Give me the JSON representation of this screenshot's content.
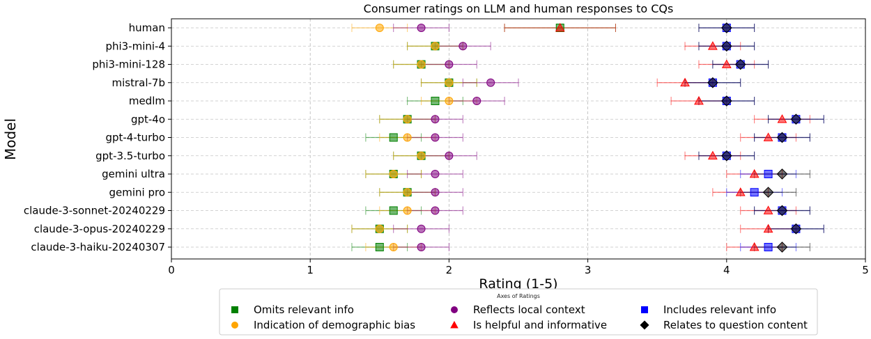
{
  "chart_data": {
    "type": "scatter",
    "title": "Consumer ratings on LLM and human responses to CQs",
    "xlabel": "Rating (1-5)",
    "ylabel": "Model",
    "xlim": [
      0,
      5
    ],
    "xticks": [
      0,
      1,
      2,
      3,
      4,
      5
    ],
    "grid": true,
    "legend": {
      "title": "Axes of Ratings",
      "placement": "bottom-center",
      "entries": [
        {
          "label": "Omits relevant info",
          "series": "omits"
        },
        {
          "label": "Reflects local context",
          "series": "local"
        },
        {
          "label": "Includes relevant info",
          "series": "includes"
        },
        {
          "label": "Indication of demographic bias",
          "series": "bias"
        },
        {
          "label": "Is helpful and informative",
          "series": "helpful"
        },
        {
          "label": "Relates to question content",
          "series": "relates"
        }
      ]
    },
    "categories": [
      "human",
      "phi3-mini-4",
      "phi3-mini-128",
      "mistral-7b",
      "medlm",
      "gpt-4o",
      "gpt-4-turbo",
      "gpt-3.5-turbo",
      "gemini ultra",
      "gemini pro",
      "claude-3-sonnet-20240229",
      "claude-3-opus-20240229",
      "claude-3-haiku-20240307"
    ],
    "series": [
      {
        "key": "omits",
        "name": "Omits relevant info",
        "color": "#008000",
        "marker": "square",
        "values": [
          2.8,
          1.9,
          1.8,
          2.0,
          1.9,
          1.7,
          1.6,
          1.8,
          1.6,
          1.7,
          1.6,
          1.5,
          1.5
        ],
        "errors": [
          0.4,
          0.2,
          0.2,
          0.2,
          0.2,
          0.2,
          0.2,
          0.2,
          0.2,
          0.2,
          0.2,
          0.2,
          0.2
        ]
      },
      {
        "key": "bias",
        "name": "Indication of demographic bias",
        "color": "#ffa500",
        "marker": "circle",
        "values": [
          1.5,
          1.9,
          1.8,
          2.0,
          2.0,
          1.7,
          1.7,
          1.8,
          1.6,
          1.7,
          1.7,
          1.5,
          1.6
        ],
        "errors": [
          0.2,
          0.2,
          0.2,
          0.2,
          0.2,
          0.2,
          0.2,
          0.2,
          0.2,
          0.2,
          0.2,
          0.2,
          0.2
        ]
      },
      {
        "key": "local",
        "name": "Reflects local context",
        "color": "#800080",
        "marker": "circle",
        "values": [
          1.8,
          2.1,
          2.0,
          2.3,
          2.2,
          1.9,
          1.9,
          2.0,
          1.9,
          1.9,
          1.9,
          1.8,
          1.8
        ],
        "errors": [
          0.2,
          0.2,
          0.2,
          0.2,
          0.2,
          0.2,
          0.2,
          0.2,
          0.2,
          0.2,
          0.2,
          0.2,
          0.2
        ]
      },
      {
        "key": "helpful",
        "name": "Is helpful and informative",
        "color": "#ff0000",
        "marker": "triangle",
        "values": [
          2.8,
          3.9,
          4.0,
          3.7,
          3.8,
          4.4,
          4.3,
          3.9,
          4.2,
          4.1,
          4.3,
          4.3,
          4.2
        ],
        "errors": [
          0.4,
          0.2,
          0.2,
          0.2,
          0.2,
          0.2,
          0.2,
          0.2,
          0.2,
          0.2,
          0.2,
          0.2,
          0.2
        ]
      },
      {
        "key": "includes",
        "name": "Includes relevant info",
        "color": "#0000ff",
        "marker": "square",
        "values": [
          4.0,
          4.0,
          4.1,
          3.9,
          4.0,
          4.5,
          4.4,
          4.0,
          4.3,
          4.2,
          4.4,
          4.5,
          4.3
        ],
        "errors": [
          0.2,
          0.2,
          0.2,
          0.2,
          0.2,
          0.2,
          0.2,
          0.2,
          0.2,
          0.2,
          0.2,
          0.2,
          0.2
        ]
      },
      {
        "key": "relates",
        "name": "Relates to question content",
        "color": "#000000",
        "marker": "diamond",
        "values": [
          4.0,
          4.0,
          4.1,
          3.9,
          4.0,
          4.5,
          4.4,
          4.0,
          4.4,
          4.3,
          4.4,
          4.5,
          4.4
        ],
        "errors": [
          0.2,
          0.2,
          0.2,
          0.2,
          0.2,
          0.2,
          0.2,
          0.2,
          0.2,
          0.2,
          0.2,
          0.2,
          0.2
        ]
      }
    ]
  }
}
